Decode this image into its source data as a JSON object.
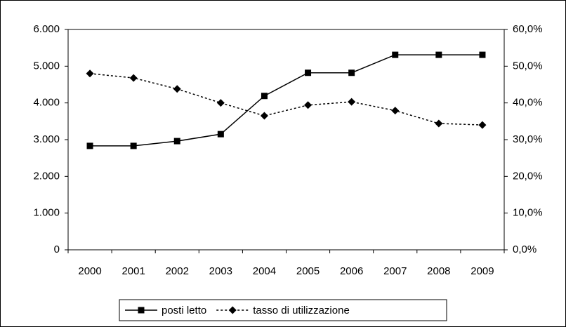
{
  "chart_data": {
    "type": "line",
    "categories": [
      "2000",
      "2001",
      "2002",
      "2003",
      "2004",
      "2005",
      "2006",
      "2007",
      "2008",
      "2009"
    ],
    "series": [
      {
        "name": "posti letto",
        "color": "#000000",
        "style": "solid",
        "marker": "square",
        "values": [
          2830,
          2830,
          2960,
          3150,
          4190,
          4820,
          4820,
          5310,
          5310,
          5310
        ]
      },
      {
        "name": "tasso di utilizzazione",
        "color": "#000000",
        "style": "dotted",
        "marker": "diamond",
        "axis": "y2",
        "values": [
          48.0,
          46.8,
          43.8,
          40.0,
          36.5,
          39.4,
          40.3,
          37.9,
          34.4,
          34.0
        ]
      }
    ],
    "ylim": [
      0,
      6000
    ],
    "yticks": [
      0,
      {
        "value": 1000,
        "label": "1.000"
      },
      {
        "value": 2000,
        "label": "2.000"
      },
      {
        "value": 3000,
        "label": "3.000"
      },
      {
        "value": 4000,
        "label": "4.000"
      },
      {
        "value": 5000,
        "label": "5.000"
      },
      {
        "value": 6000,
        "label": "6.000"
      }
    ],
    "y2lim": [
      0,
      60
    ],
    "y2ticks": [
      {
        "value": 0,
        "label": "0,0%"
      },
      {
        "value": 10,
        "label": "10,0%"
      },
      {
        "value": 20,
        "label": "20,0%"
      },
      {
        "value": 30,
        "label": "30,0%"
      },
      {
        "value": 40,
        "label": "40,0%"
      },
      {
        "value": 50,
        "label": "50,0%"
      },
      {
        "value": 60,
        "label": "60,0%"
      }
    ],
    "grid": false,
    "legend": "bottom"
  }
}
